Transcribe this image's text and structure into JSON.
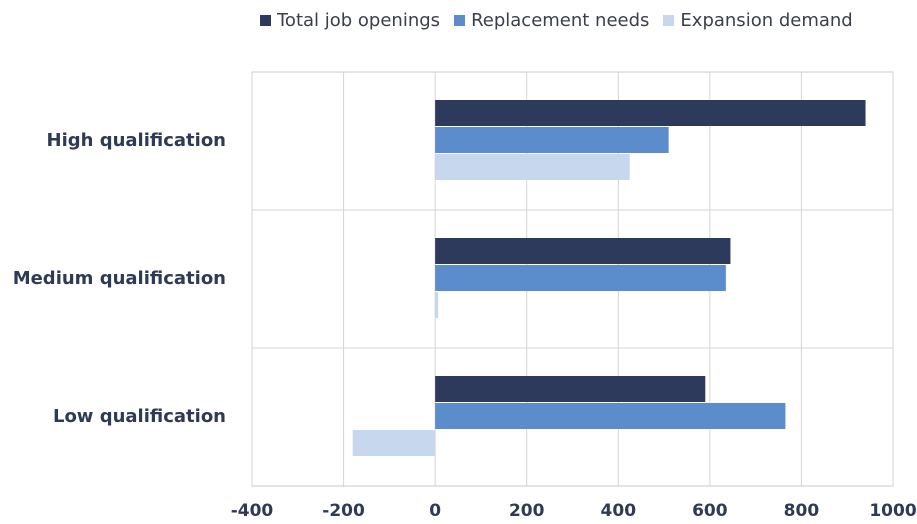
{
  "chart_data": {
    "type": "bar",
    "orientation": "horizontal",
    "categories": [
      "High qualification",
      "Medium qualification",
      "Low qualification"
    ],
    "series": [
      {
        "name": "Total job openings",
        "values": [
          940,
          645,
          590
        ],
        "color": "#2d3a5c"
      },
      {
        "name": "Replacement needs",
        "values": [
          510,
          635,
          765
        ],
        "color": "#5b8ccc"
      },
      {
        "name": "Expansion demand",
        "values": [
          425,
          5,
          -180
        ],
        "color": "#c6d7ee"
      }
    ],
    "x_ticks": [
      "-400",
      "-200",
      "0",
      "200",
      "400",
      "600",
      "800",
      "1000"
    ],
    "xlim": [
      -400,
      1000
    ],
    "grid": true,
    "legend_position": "top"
  }
}
